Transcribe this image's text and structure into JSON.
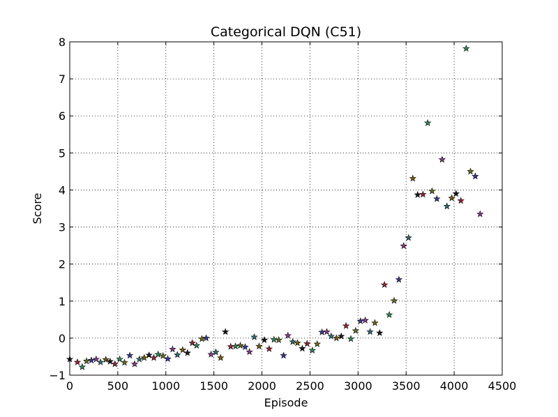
{
  "chart_data": {
    "type": "scatter",
    "title": "Categorical DQN (C51)",
    "xlabel": "Episode",
    "ylabel": "Score",
    "xlim": [
      0,
      4500
    ],
    "ylim": [
      -1,
      8
    ],
    "xticks": [
      0,
      500,
      1000,
      1500,
      2000,
      2500,
      3000,
      3500,
      4000,
      4500
    ],
    "yticks": [
      -1,
      0,
      1,
      2,
      3,
      4,
      5,
      6,
      7,
      8
    ],
    "xtick_labels": [
      "0",
      "500",
      "1000",
      "1500",
      "2000",
      "2500",
      "3000",
      "3500",
      "4000",
      "4500"
    ],
    "ytick_labels": [
      "−1",
      "0",
      "1",
      "2",
      "3",
      "4",
      "5",
      "6",
      "7",
      "8"
    ],
    "grid": true,
    "marker": "star",
    "marker_colors": [
      "#1b1b1b",
      "#9b2335",
      "#2e8b57",
      "#6b6b1e",
      "#3a3a9b",
      "#8b3a8b",
      "#2f6f6f",
      "#7a5c00"
    ],
    "points": [
      {
        "x": 0,
        "y": -0.57
      },
      {
        "x": 80,
        "y": -0.65
      },
      {
        "x": 130,
        "y": -0.78
      },
      {
        "x": 175,
        "y": -0.62
      },
      {
        "x": 225,
        "y": -0.6
      },
      {
        "x": 275,
        "y": -0.57
      },
      {
        "x": 320,
        "y": -0.65
      },
      {
        "x": 375,
        "y": -0.58
      },
      {
        "x": 420,
        "y": -0.63
      },
      {
        "x": 470,
        "y": -0.7
      },
      {
        "x": 520,
        "y": -0.57
      },
      {
        "x": 570,
        "y": -0.66
      },
      {
        "x": 625,
        "y": -0.47
      },
      {
        "x": 675,
        "y": -0.7
      },
      {
        "x": 725,
        "y": -0.57
      },
      {
        "x": 775,
        "y": -0.53
      },
      {
        "x": 825,
        "y": -0.46
      },
      {
        "x": 875,
        "y": -0.53
      },
      {
        "x": 920,
        "y": -0.44
      },
      {
        "x": 970,
        "y": -0.48
      },
      {
        "x": 1020,
        "y": -0.56
      },
      {
        "x": 1070,
        "y": -0.3
      },
      {
        "x": 1120,
        "y": -0.45
      },
      {
        "x": 1175,
        "y": -0.32
      },
      {
        "x": 1225,
        "y": -0.4
      },
      {
        "x": 1275,
        "y": -0.13
      },
      {
        "x": 1320,
        "y": -0.2
      },
      {
        "x": 1375,
        "y": -0.02
      },
      {
        "x": 1420,
        "y": 0.0
      },
      {
        "x": 1470,
        "y": -0.44
      },
      {
        "x": 1520,
        "y": -0.38
      },
      {
        "x": 1570,
        "y": -0.53
      },
      {
        "x": 1620,
        "y": 0.17
      },
      {
        "x": 1675,
        "y": -0.23
      },
      {
        "x": 1725,
        "y": -0.22
      },
      {
        "x": 1775,
        "y": -0.2
      },
      {
        "x": 1825,
        "y": -0.24
      },
      {
        "x": 1870,
        "y": -0.37
      },
      {
        "x": 1920,
        "y": 0.03
      },
      {
        "x": 1970,
        "y": -0.22
      },
      {
        "x": 2025,
        "y": -0.05
      },
      {
        "x": 2075,
        "y": -0.29
      },
      {
        "x": 2125,
        "y": -0.04
      },
      {
        "x": 2175,
        "y": -0.05
      },
      {
        "x": 2225,
        "y": -0.47
      },
      {
        "x": 2270,
        "y": 0.07
      },
      {
        "x": 2320,
        "y": -0.1
      },
      {
        "x": 2370,
        "y": -0.13
      },
      {
        "x": 2420,
        "y": -0.28
      },
      {
        "x": 2470,
        "y": -0.15
      },
      {
        "x": 2525,
        "y": -0.33
      },
      {
        "x": 2575,
        "y": -0.16
      },
      {
        "x": 2625,
        "y": 0.16
      },
      {
        "x": 2675,
        "y": 0.17
      },
      {
        "x": 2720,
        "y": 0.05
      },
      {
        "x": 2775,
        "y": 0.0
      },
      {
        "x": 2825,
        "y": 0.05
      },
      {
        "x": 2875,
        "y": 0.33
      },
      {
        "x": 2925,
        "y": -0.02
      },
      {
        "x": 2975,
        "y": 0.2
      },
      {
        "x": 3025,
        "y": 0.46
      },
      {
        "x": 3075,
        "y": 0.48
      },
      {
        "x": 3125,
        "y": 0.17
      },
      {
        "x": 3175,
        "y": 0.41
      },
      {
        "x": 3225,
        "y": 0.14
      },
      {
        "x": 3275,
        "y": 1.44
      },
      {
        "x": 3325,
        "y": 0.63
      },
      {
        "x": 3375,
        "y": 1.01
      },
      {
        "x": 3425,
        "y": 1.58
      },
      {
        "x": 3475,
        "y": 2.49
      },
      {
        "x": 3525,
        "y": 2.71
      },
      {
        "x": 3570,
        "y": 4.31
      },
      {
        "x": 3620,
        "y": 3.87
      },
      {
        "x": 3675,
        "y": 3.88
      },
      {
        "x": 3725,
        "y": 5.81
      },
      {
        "x": 3770,
        "y": 3.97
      },
      {
        "x": 3820,
        "y": 3.76
      },
      {
        "x": 3875,
        "y": 4.82
      },
      {
        "x": 3925,
        "y": 3.56
      },
      {
        "x": 3975,
        "y": 3.78
      },
      {
        "x": 4020,
        "y": 3.9
      },
      {
        "x": 4070,
        "y": 3.71
      },
      {
        "x": 4125,
        "y": 7.82
      },
      {
        "x": 4170,
        "y": 4.5
      },
      {
        "x": 4220,
        "y": 4.37
      },
      {
        "x": 4270,
        "y": 3.35
      }
    ]
  }
}
